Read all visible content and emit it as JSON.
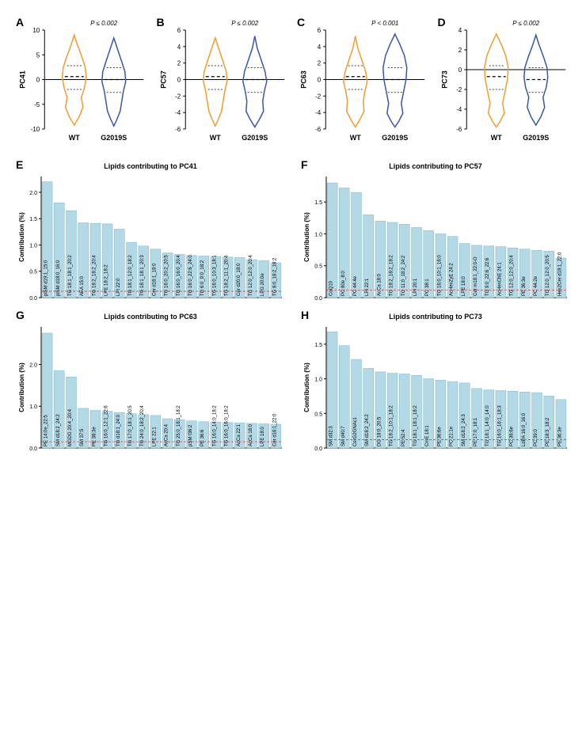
{
  "colors": {
    "wt": "#f39c2d",
    "g2019s": "#3a56a5",
    "bar_fill": "#b3d9e6",
    "bar_stroke": "#7ab8cc",
    "axis": "#000000",
    "dashed_red": "#d62728"
  },
  "violins": [
    {
      "letter": "A",
      "ylabel": "PC41",
      "pval": "P ≤ 0.002",
      "ymin": -10,
      "ymax": 10,
      "ytick": 5,
      "groups": [
        "WT",
        "G2019S"
      ]
    },
    {
      "letter": "B",
      "ylabel": "PC57",
      "pval": "P ≤ 0.002",
      "ymin": -6,
      "ymax": 6,
      "ytick": 2,
      "groups": [
        "WT",
        "G2019S"
      ]
    },
    {
      "letter": "C",
      "ylabel": "PC63",
      "pval": "P < 0.001",
      "ymin": -6,
      "ymax": 6,
      "ytick": 2,
      "groups": [
        "WT",
        "G2019S"
      ]
    },
    {
      "letter": "D",
      "ylabel": "PC73",
      "pval": "P ≤ 0.002",
      "ymin": -6,
      "ymax": 4,
      "ytick": 2,
      "groups": [
        "WT",
        "G2019S"
      ]
    }
  ],
  "bars": [
    {
      "letter": "E",
      "title": "Lipids contributing to PC41",
      "ylabel": "Contribution (%)",
      "ymax": 2.3,
      "ytick": 0.5,
      "dashed": 0.12,
      "items": [
        {
          "l": "plSM d19:1_15:0",
          "v": 2.2
        },
        {
          "l": "plSM d18:0_16:0",
          "v": 1.8
        },
        {
          "l": "TG 18:1_18:1_20:2",
          "v": 1.65
        },
        {
          "l": "AEA 15:0",
          "v": 1.42
        },
        {
          "l": "TG 18:2_18:2_20:4",
          "v": 1.41
        },
        {
          "l": "LPE 18:2_18:2",
          "v": 1.4
        },
        {
          "l": "LPI 22:0",
          "v": 1.3
        },
        {
          "l": "TG 18:1_12:0_18:2",
          "v": 1.05
        },
        {
          "l": "TG 18:1_18:1_20:3",
          "v": 0.98
        },
        {
          "l": "Cer d18:1_18:0",
          "v": 0.92
        },
        {
          "l": "TG 16:0_20:2_20:5",
          "v": 0.85
        },
        {
          "l": "TG 16:0_16:0_20:4",
          "v": 0.82
        },
        {
          "l": "TG 16:0_22:6_24:0",
          "v": 0.8
        },
        {
          "l": "TG 6:0_9:0_18:2",
          "v": 0.79
        },
        {
          "l": "TG 16:0_10:3_18:1",
          "v": 0.78
        },
        {
          "l": "TG 18:2_11:1_20:4",
          "v": 0.77
        },
        {
          "l": "Cer d20:0_18:0",
          "v": 0.76
        },
        {
          "l": "TG 12:0_12:0_20:4",
          "v": 0.72
        },
        {
          "l": "LPG 20:0e",
          "v": 0.7
        },
        {
          "l": "TG 8:0_18:2_18:2",
          "v": 0.66
        }
      ]
    },
    {
      "letter": "F",
      "title": "Lipids contributing to PC57",
      "ylabel": "Contribution (%)",
      "ymax": 1.9,
      "ytick": 0.5,
      "dashed": 0.12,
      "items": [
        {
          "l": "CoQ10",
          "v": 1.8
        },
        {
          "l": "PC 80e_8:0",
          "v": 1.72
        },
        {
          "l": "PC 44:4e",
          "v": 1.65
        },
        {
          "l": "LPI 22:1",
          "v": 1.3
        },
        {
          "l": "AcCa 18:0",
          "v": 1.2
        },
        {
          "l": "TG 18:2_18:2_18:2",
          "v": 1.18
        },
        {
          "l": "TG 11:0_18:2_24:2",
          "v": 1.15
        },
        {
          "l": "LPI 20:1",
          "v": 1.1
        },
        {
          "l": "PC 38:1",
          "v": 1.05
        },
        {
          "l": "TG 16:0_10:1_16:0",
          "v": 1.0
        },
        {
          "l": "AcHexZyE 24:2",
          "v": 0.96
        },
        {
          "l": "LPE 18:0",
          "v": 0.85
        },
        {
          "l": "Cer m18:1_22:0-O",
          "v": 0.82
        },
        {
          "l": "TG 9:0_22:6_22:6",
          "v": 0.81
        },
        {
          "l": "AcHexChE 24:1",
          "v": 0.8
        },
        {
          "l": "TG 12:0_12:0_20:4",
          "v": 0.78
        },
        {
          "l": "PE 36:3e",
          "v": 0.76
        },
        {
          "l": "PC 44:2e",
          "v": 0.74
        },
        {
          "l": "TG 12:0_12:0_20:5",
          "v": 0.73
        },
        {
          "l": "Hex2Cer d18:1_22:0",
          "v": 0.62
        }
      ]
    },
    {
      "letter": "G",
      "title": "Lipids contributing to PC63",
      "ylabel": "Contribution (%)",
      "ymax": 2.9,
      "ytick": 1.0,
      "dashed": 0.15,
      "items": [
        {
          "l": "PE 14:0e_22:5",
          "v": 2.75
        },
        {
          "l": "SM d18:2_24:2",
          "v": 1.85
        },
        {
          "l": "MGDG 20:4_20:4",
          "v": 1.7
        },
        {
          "l": "SM 37:5",
          "v": 0.95
        },
        {
          "l": "PE 38:3e",
          "v": 0.9
        },
        {
          "l": "TG 16:0_12:1_22:6",
          "v": 0.88
        },
        {
          "l": "TG d18:1_24:0",
          "v": 0.85
        },
        {
          "l": "TG 17:0_18:1_20:5",
          "v": 0.82
        },
        {
          "l": "TG 24:0_18:2_20:4",
          "v": 0.8
        },
        {
          "l": "LPE 22:1",
          "v": 0.78
        },
        {
          "l": "AcCa 20:4",
          "v": 0.7
        },
        {
          "l": "TG 25:0_18:1_18:2",
          "v": 0.68
        },
        {
          "l": "pSM t36:2",
          "v": 0.65
        },
        {
          "l": "PE 36:6",
          "v": 0.63
        },
        {
          "l": "TG 16:0_14:0_18:2",
          "v": 0.62
        },
        {
          "l": "TG 16:0_16:0_18:2",
          "v": 0.61
        },
        {
          "l": "AcCa 22:1",
          "v": 0.6
        },
        {
          "l": "AcCa 18:0",
          "v": 0.59
        },
        {
          "l": "LPE 18:0",
          "v": 0.58
        },
        {
          "l": "Cer d16:1_22:0",
          "v": 0.57
        }
      ]
    },
    {
      "letter": "H",
      "title": "Lipids contributing to PC73",
      "ylabel": "Contribution (%)",
      "ymax": 1.75,
      "ytick": 0.5,
      "dashed": 0.12,
      "items": [
        {
          "l": "SM d32:3",
          "v": 1.68
        },
        {
          "l": "SM d40:7",
          "v": 1.48
        },
        {
          "l": "CerG2GNAc1",
          "v": 1.28
        },
        {
          "l": "SM d18:2_24:2",
          "v": 1.15
        },
        {
          "l": "DG 18:0_20:5",
          "v": 1.1
        },
        {
          "l": "TG 18:2_10:1_18:2",
          "v": 1.08
        },
        {
          "l": "PE 52:4",
          "v": 1.07
        },
        {
          "l": "TG 18:1_18:1_18:2",
          "v": 1.05
        },
        {
          "l": "CmE 18:1",
          "v": 1.0
        },
        {
          "l": "PE 36:6e",
          "v": 0.98
        },
        {
          "l": "PC 21:1e",
          "v": 0.96
        },
        {
          "l": "SM d18:2_24:3",
          "v": 0.94
        },
        {
          "l": "PE 17:0_18:1",
          "v": 0.86
        },
        {
          "l": "TG 18:1_14:0_14:0",
          "v": 0.84
        },
        {
          "l": "TG 16:0_16:1_18:3",
          "v": 0.83
        },
        {
          "l": "PC 36:6e",
          "v": 0.82
        },
        {
          "l": "LdPA 16:0_16:0",
          "v": 0.81
        },
        {
          "l": "PC 39:0",
          "v": 0.8
        },
        {
          "l": "PE 18:3_18:2",
          "v": 0.75
        },
        {
          "l": "PE 36:3e",
          "v": 0.7
        }
      ]
    }
  ]
}
